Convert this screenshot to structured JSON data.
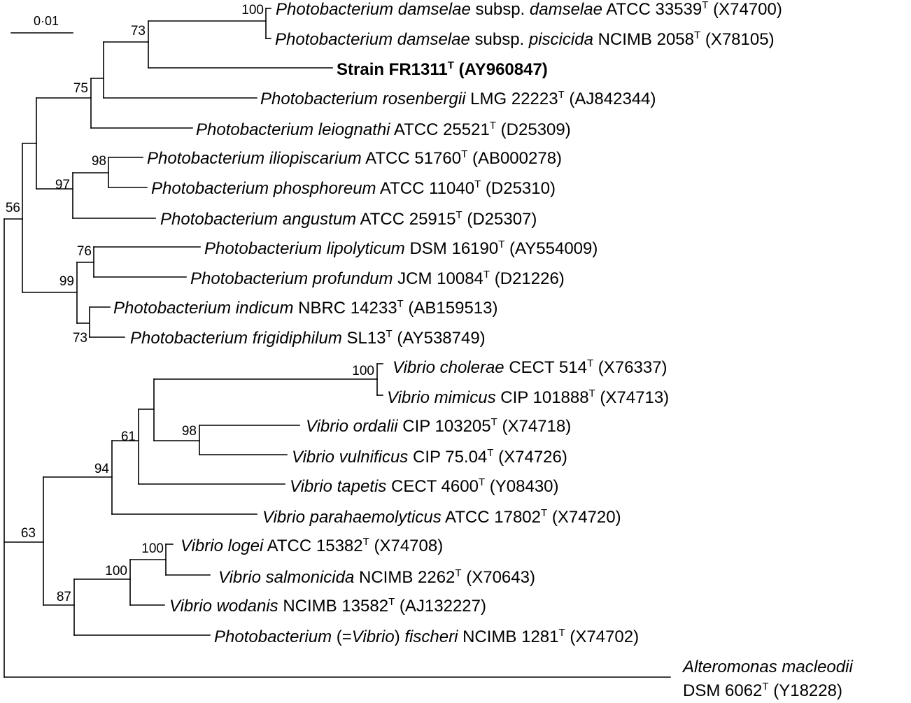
{
  "scale_bar": {
    "label": "0·01"
  },
  "taxa": [
    {
      "id": "damselae-damselae",
      "parts": [
        {
          "t": "Photobacterium damselae",
          "i": true
        },
        {
          "t": " subsp. "
        },
        {
          "t": "damselae",
          "i": true
        },
        {
          "t": " ATCC 33539"
        },
        {
          "t": "T",
          "sup": true
        },
        {
          "t": " (X74700)"
        }
      ]
    },
    {
      "id": "damselae-piscicida",
      "parts": [
        {
          "t": "Photobacterium damselae",
          "i": true
        },
        {
          "t": " subsp. "
        },
        {
          "t": "piscicida",
          "i": true
        },
        {
          "t": " NCIMB 2058"
        },
        {
          "t": "T",
          "sup": true
        },
        {
          "t": " (X78105)"
        }
      ]
    },
    {
      "id": "strain-fr1311",
      "parts": [
        {
          "t": "Strain FR1311",
          "b": true
        },
        {
          "t": "T",
          "sup": true,
          "b": true
        },
        {
          "t": " (AY960847)",
          "b": true
        }
      ]
    },
    {
      "id": "rosenbergii",
      "parts": [
        {
          "t": "Photobacterium rosenbergii",
          "i": true
        },
        {
          "t": " LMG 22223"
        },
        {
          "t": "T",
          "sup": true
        },
        {
          "t": " (AJ842344)"
        }
      ]
    },
    {
      "id": "leiognathi",
      "parts": [
        {
          "t": "Photobacterium leiognathi",
          "i": true
        },
        {
          "t": " ATCC 25521"
        },
        {
          "t": "T",
          "sup": true
        },
        {
          "t": " (D25309)"
        }
      ]
    },
    {
      "id": "iliopiscarium",
      "parts": [
        {
          "t": "Photobacterium iliopiscarium",
          "i": true
        },
        {
          "t": " ATCC 51760"
        },
        {
          "t": "T",
          "sup": true
        },
        {
          "t": " (AB000278)"
        }
      ]
    },
    {
      "id": "phosphoreum",
      "parts": [
        {
          "t": "Photobacterium phosphoreum",
          "i": true
        },
        {
          "t": " ATCC 11040"
        },
        {
          "t": "T",
          "sup": true
        },
        {
          "t": " (D25310)"
        }
      ]
    },
    {
      "id": "angustum",
      "parts": [
        {
          "t": "Photobacterium angustum",
          "i": true
        },
        {
          "t": " ATCC 25915"
        },
        {
          "t": "T",
          "sup": true
        },
        {
          "t": " (D25307)"
        }
      ]
    },
    {
      "id": "lipolyticum",
      "parts": [
        {
          "t": "Photobacterium lipolyticum",
          "i": true
        },
        {
          "t": " DSM 16190"
        },
        {
          "t": "T",
          "sup": true
        },
        {
          "t": " (AY554009)"
        }
      ]
    },
    {
      "id": "profundum",
      "parts": [
        {
          "t": "Photobacterium profundum",
          "i": true
        },
        {
          "t": " JCM 10084"
        },
        {
          "t": "T",
          "sup": true
        },
        {
          "t": " (D21226)"
        }
      ]
    },
    {
      "id": "indicum",
      "parts": [
        {
          "t": "Photobacterium indicum",
          "i": true
        },
        {
          "t": " NBRC 14233"
        },
        {
          "t": "T",
          "sup": true
        },
        {
          "t": " (AB159513)"
        }
      ]
    },
    {
      "id": "frigidiphilum",
      "parts": [
        {
          "t": "Photobacterium frigidiphilum",
          "i": true
        },
        {
          "t": " SL13"
        },
        {
          "t": "T",
          "sup": true
        },
        {
          "t": " (AY538749)"
        }
      ]
    },
    {
      "id": "cholerae",
      "parts": [
        {
          "t": "Vibrio cholerae",
          "i": true
        },
        {
          "t": " CECT 514"
        },
        {
          "t": "T",
          "sup": true
        },
        {
          "t": " (X76337)"
        }
      ]
    },
    {
      "id": "mimicus",
      "parts": [
        {
          "t": "Vibrio mimicus",
          "i": true
        },
        {
          "t": " CIP 101888"
        },
        {
          "t": "T",
          "sup": true
        },
        {
          "t": " (X74713)"
        }
      ]
    },
    {
      "id": "ordalii",
      "parts": [
        {
          "t": "Vibrio ordalii",
          "i": true
        },
        {
          "t": " CIP 103205"
        },
        {
          "t": "T",
          "sup": true
        },
        {
          "t": " (X74718)"
        }
      ]
    },
    {
      "id": "vulnificus",
      "parts": [
        {
          "t": "Vibrio vulnificus",
          "i": true
        },
        {
          "t": " CIP 75.04"
        },
        {
          "t": "T",
          "sup": true
        },
        {
          "t": " (X74726)"
        }
      ]
    },
    {
      "id": "tapetis",
      "parts": [
        {
          "t": "Vibrio tapetis",
          "i": true
        },
        {
          "t": " CECT 4600"
        },
        {
          "t": "T",
          "sup": true
        },
        {
          "t": " (Y08430)"
        }
      ]
    },
    {
      "id": "parahaemolyticus",
      "parts": [
        {
          "t": "Vibrio parahaemolyticus",
          "i": true
        },
        {
          "t": " ATCC 17802"
        },
        {
          "t": "T",
          "sup": true
        },
        {
          "t": " (X74720)"
        }
      ]
    },
    {
      "id": "logei",
      "parts": [
        {
          "t": "Vibrio logei",
          "i": true
        },
        {
          "t": " ATCC 15382"
        },
        {
          "t": "T",
          "sup": true
        },
        {
          "t": " (X74708)"
        }
      ]
    },
    {
      "id": "salmonicida",
      "parts": [
        {
          "t": "Vibrio salmonicida",
          "i": true
        },
        {
          "t": " NCIMB 2262"
        },
        {
          "t": "T",
          "sup": true
        },
        {
          "t": " (X70643)"
        }
      ]
    },
    {
      "id": "wodanis",
      "parts": [
        {
          "t": "Vibrio wodanis",
          "i": true
        },
        {
          "t": " NCIMB 13582"
        },
        {
          "t": "T",
          "sup": true
        },
        {
          "t": " (AJ132227)"
        }
      ]
    },
    {
      "id": "fischeri",
      "parts": [
        {
          "t": "Photobacterium",
          "i": true
        },
        {
          "t": " (="
        },
        {
          "t": "Vibrio",
          "i": true
        },
        {
          "t": ") "
        },
        {
          "t": "fischeri",
          "i": true
        },
        {
          "t": " NCIMB 1281"
        },
        {
          "t": "T",
          "sup": true
        },
        {
          "t": " (X74702)"
        }
      ]
    },
    {
      "id": "alteromonas-line1",
      "parts": [
        {
          "t": "Alteromonas macleodii",
          "i": true
        }
      ]
    },
    {
      "id": "alteromonas-line2",
      "parts": [
        {
          "t": "DSM 6062"
        },
        {
          "t": "T",
          "sup": true
        },
        {
          "t": " (Y18228)"
        }
      ]
    }
  ],
  "bootstrap": [
    {
      "id": "damselae",
      "value": "100"
    },
    {
      "id": "damselae-strain",
      "value": "73"
    },
    {
      "id": "rosenbergii-clade",
      "value": "75"
    },
    {
      "id": "iliopiscarium-phosphoreum",
      "value": "98"
    },
    {
      "id": "angustum-clade",
      "value": "97"
    },
    {
      "id": "photobacterium-main",
      "value": "56"
    },
    {
      "id": "lipolyticum-profundum",
      "value": "76"
    },
    {
      "id": "profundum-clade",
      "value": "99"
    },
    {
      "id": "indicum-frigidiphilum",
      "value": "73"
    },
    {
      "id": "cholerae-mimicus",
      "value": "100"
    },
    {
      "id": "ordalii-vulnificus",
      "value": "98"
    },
    {
      "id": "cholerae-clade",
      "value": "61"
    },
    {
      "id": "vibrio-core",
      "value": "94"
    },
    {
      "id": "logei-salmonicida",
      "value": "100"
    },
    {
      "id": "logei-clade",
      "value": "100"
    },
    {
      "id": "fischeri-clade",
      "value": "87"
    },
    {
      "id": "vibrio-clade",
      "value": "63"
    }
  ]
}
